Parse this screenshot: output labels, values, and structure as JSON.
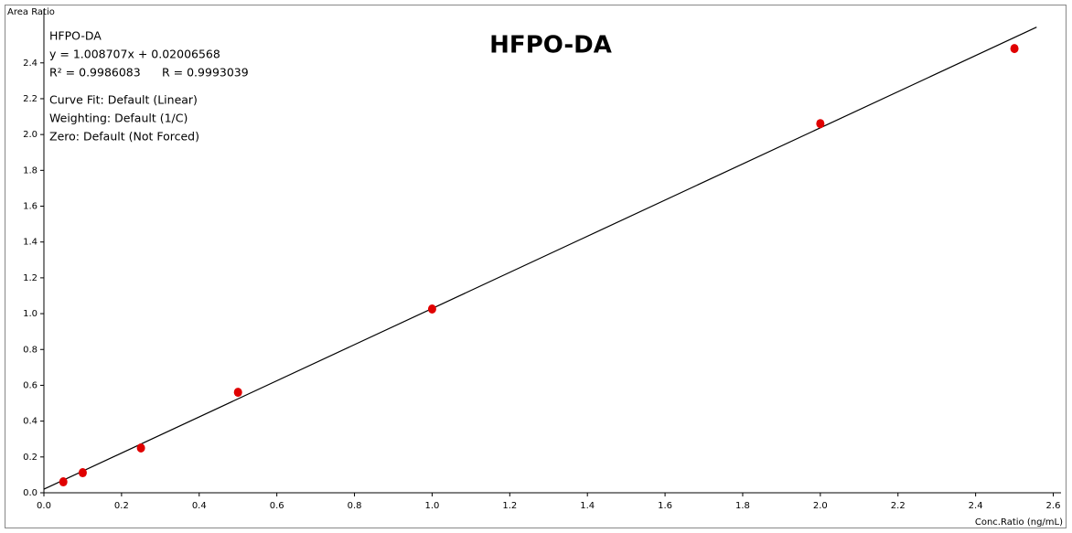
{
  "chart_data": {
    "type": "scatter",
    "title": "HFPO-DA",
    "x_label": "Conc.Ratio (ng/mL)",
    "y_label": "Area Ratio",
    "annotations": [
      "HFPO-DA",
      "y = 1.008707x + 0.02006568",
      "R² = 0.9986083",
      "R = 0.9993039",
      "Curve Fit: Default (Linear)",
      "Weighting: Default (1/C)",
      "Zero: Default (Not Forced)"
    ],
    "fit": {
      "slope": 1.008707,
      "intercept": 0.02006568,
      "color": "#000000"
    },
    "x": [
      0.05,
      0.1,
      0.25,
      0.5,
      1.0,
      2.0,
      2.5
    ],
    "values": [
      0.061,
      0.112,
      0.25,
      0.561,
      1.026,
      2.061,
      2.48
    ],
    "color": "#e00000",
    "xlim": [
      0,
      2.62
    ],
    "ylim": [
      0,
      2.7
    ],
    "xticks": [
      {
        "value": 0,
        "label": "0.0"
      },
      0.2,
      0.4,
      0.6,
      0.8,
      {
        "value": 1,
        "label": "1.0"
      },
      1.2,
      1.4,
      1.6,
      1.8,
      {
        "value": 2,
        "label": "2.0"
      },
      2.2,
      2.4,
      2.6
    ],
    "yticks": [
      {
        "value": 0,
        "label": "0.0"
      },
      0.2,
      0.4,
      0.6,
      0.8,
      {
        "value": 1,
        "label": "1.0"
      },
      1.2,
      1.4,
      1.6,
      1.8,
      {
        "value": 2,
        "label": "2.0"
      },
      2.2,
      2.4
    ],
    "grid": false
  }
}
